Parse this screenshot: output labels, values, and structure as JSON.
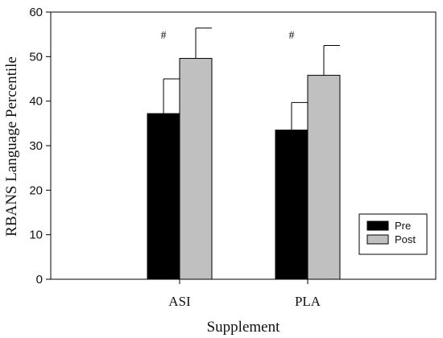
{
  "chart_data": {
    "type": "bar",
    "xlabel": "Supplement",
    "ylabel": "RBANS Language Percentile",
    "categories": [
      "ASI",
      "PLA"
    ],
    "series": [
      {
        "name": "Pre",
        "values": [
          37.2,
          33.5
        ],
        "errors": [
          7.8,
          6.2
        ],
        "color": "#000000"
      },
      {
        "name": "Post",
        "values": [
          49.6,
          45.8
        ],
        "errors": [
          6.8,
          6.7
        ],
        "color": "#c0c0c0"
      }
    ],
    "ylim": [
      0,
      60
    ],
    "yticks": [
      0,
      10,
      20,
      30,
      40,
      50,
      60
    ],
    "annotations": [
      {
        "category": "ASI",
        "text": "#"
      },
      {
        "category": "PLA",
        "text": "#"
      }
    ],
    "legend_position": "bottom-right",
    "grid": false
  }
}
